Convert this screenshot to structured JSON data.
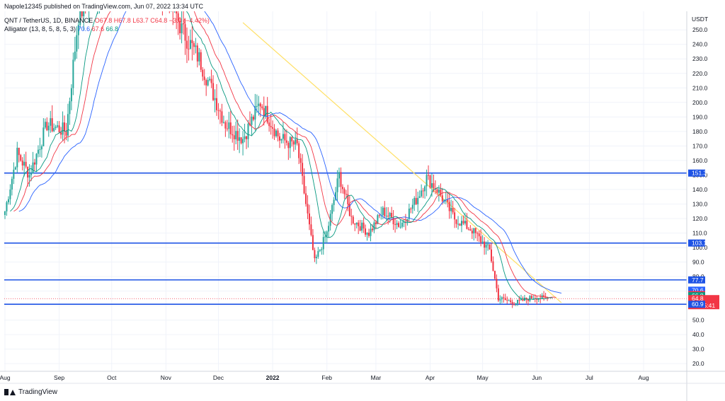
{
  "header": {
    "publisher": "Napole12345 published on TradingView.com, Jun 07, 2022 13:34 UTC",
    "symbol": "QNT / TetherUS, 1D, BINANCE",
    "ohlc": "O67.8  H67.8  L63.7  C64.8  −3.0 (−4.42%)",
    "indicator_name": "Alligator (13, 8, 5, 8, 5, 3)",
    "indicator_values": [
      "70.6",
      "67.6",
      "66.8"
    ]
  },
  "footer": {
    "brand": "TradingView"
  },
  "colors": {
    "up": "#26a69a",
    "down": "#f23645",
    "jaw": "#2962ff",
    "teeth": "#f23645",
    "lips": "#089981",
    "trendline": "#ffe066",
    "level": "#1e53e5"
  },
  "chart_data": {
    "type": "candlestick",
    "y_axis_label": "USDT",
    "ylim": [
      10,
      255
    ],
    "y_ticks": [
      "250.0",
      "240.0",
      "230.0",
      "220.0",
      "210.0",
      "200.0",
      "190.0",
      "180.0",
      "170.0",
      "160.0",
      "150.0",
      "140.0",
      "130.0",
      "120.0",
      "110.0",
      "100.0",
      "90.0",
      "80.0",
      "70.0",
      "60.0",
      "50.0",
      "40.0",
      "30.0",
      "20.0"
    ],
    "x_ticks": [
      {
        "label": "Aug",
        "date": "2021-08-01"
      },
      {
        "label": "Sep",
        "date": "2021-09-01"
      },
      {
        "label": "Oct",
        "date": "2021-10-01"
      },
      {
        "label": "Nov",
        "date": "2021-11-01"
      },
      {
        "label": "Dec",
        "date": "2021-12-01"
      },
      {
        "label": "2022",
        "date": "2022-01-01"
      },
      {
        "label": "Feb",
        "date": "2022-02-01"
      },
      {
        "label": "Mar",
        "date": "2022-03-01"
      },
      {
        "label": "Apr",
        "date": "2022-04-01"
      },
      {
        "label": "May",
        "date": "2022-05-01"
      },
      {
        "label": "Jun",
        "date": "2022-06-01"
      },
      {
        "label": "Jul",
        "date": "2022-07-01"
      },
      {
        "label": "Aug",
        "date": "2022-08-01"
      }
    ],
    "anchors": [
      {
        "date": "2021-08-01",
        "close": 125
      },
      {
        "date": "2021-08-08",
        "close": 165
      },
      {
        "date": "2021-08-15",
        "close": 150
      },
      {
        "date": "2021-08-25",
        "close": 185
      },
      {
        "date": "2021-09-05",
        "close": 180
      },
      {
        "date": "2021-09-12",
        "close": 260
      },
      {
        "date": "2021-10-05",
        "close": 300
      },
      {
        "date": "2021-11-01",
        "close": 280
      },
      {
        "date": "2021-11-10",
        "close": 250
      },
      {
        "date": "2021-11-20",
        "close": 230
      },
      {
        "date": "2021-12-05",
        "close": 185
      },
      {
        "date": "2021-12-15",
        "close": 175
      },
      {
        "date": "2021-12-25",
        "close": 200
      },
      {
        "date": "2022-01-05",
        "close": 175
      },
      {
        "date": "2022-01-15",
        "close": 170
      },
      {
        "date": "2022-01-25",
        "close": 90
      },
      {
        "date": "2022-02-01",
        "close": 110
      },
      {
        "date": "2022-02-08",
        "close": 150
      },
      {
        "date": "2022-02-15",
        "close": 120
      },
      {
        "date": "2022-02-25",
        "close": 110
      },
      {
        "date": "2022-03-05",
        "close": 125
      },
      {
        "date": "2022-03-15",
        "close": 115
      },
      {
        "date": "2022-03-25",
        "close": 135
      },
      {
        "date": "2022-03-30",
        "close": 148
      },
      {
        "date": "2022-04-05",
        "close": 140
      },
      {
        "date": "2022-04-15",
        "close": 120
      },
      {
        "date": "2022-04-25",
        "close": 112
      },
      {
        "date": "2022-05-05",
        "close": 98
      },
      {
        "date": "2022-05-10",
        "close": 65
      },
      {
        "date": "2022-05-20",
        "close": 62
      },
      {
        "date": "2022-05-30",
        "close": 66
      },
      {
        "date": "2022-06-07",
        "close": 64.8
      }
    ],
    "levels": [
      151.3,
      103.1,
      77.7,
      60.9
    ],
    "trendline": [
      {
        "date": "2021-12-15",
        "value": 255
      },
      {
        "date": "2022-06-15",
        "value": 62
      }
    ],
    "price_labels": [
      {
        "value": 151.3,
        "text": "151.3",
        "kind": "level"
      },
      {
        "value": 103.1,
        "text": "103.1",
        "kind": "level"
      },
      {
        "value": 77.7,
        "text": "77.7",
        "kind": "level"
      },
      {
        "value": 70.6,
        "text": "70.6",
        "kind": "jaw"
      },
      {
        "value": 67.6,
        "text": "67.6",
        "kind": "teeth"
      },
      {
        "value": 66.8,
        "text": "66.8",
        "kind": "lips"
      },
      {
        "value": 64.8,
        "text": "64.8",
        "kind": "last"
      },
      {
        "value": 60.9,
        "text": "60.9",
        "kind": "level"
      }
    ],
    "countdown": "10:25:41"
  }
}
